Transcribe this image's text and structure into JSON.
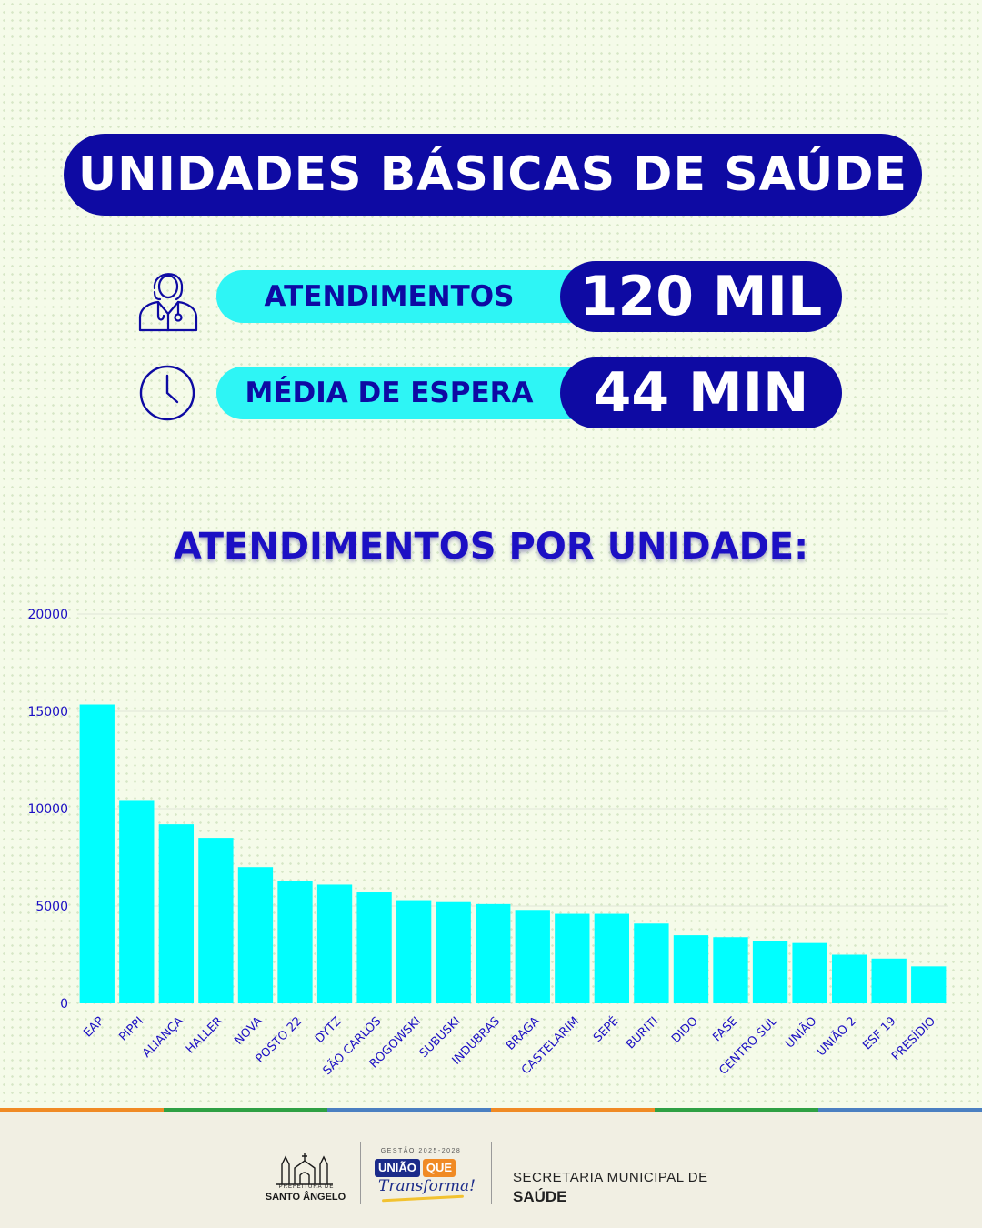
{
  "header": {
    "title": "UNIDADES BÁSICAS DE SAÚDE"
  },
  "stats": [
    {
      "label": "ATENDIMENTOS",
      "value": "120 MIL",
      "icon": "doctor-icon"
    },
    {
      "label": "MÉDIA DE ESPERA",
      "value": "44 MIN",
      "icon": "clock-icon"
    }
  ],
  "colors": {
    "navy": "#0e0aa3",
    "cyan": "#2ef5f5",
    "bar": "#00ffff",
    "axis_text": "#1c0fc4"
  },
  "chart_data": {
    "type": "bar",
    "title": "ATENDIMENTOS POR UNIDADE:",
    "categories": [
      "EAP",
      "PIPPI",
      "ALIANÇA",
      "HALLER",
      "NOVA",
      "POSTO 22",
      "DYTZ",
      "SÃO CARLOS",
      "ROGOWSKI",
      "SUBUSKI",
      "INDUBRAS",
      "BRAGA",
      "CASTELARIM",
      "SEPÉ",
      "BURITI",
      "DIDO",
      "FASE",
      "CENTRO SUL",
      "UNIÃO",
      "UNIÃO 2",
      "ESF 19",
      "PRESÍDIO"
    ],
    "values": [
      15350,
      10400,
      9200,
      8500,
      7000,
      6300,
      6100,
      5700,
      5300,
      5200,
      5100,
      4800,
      4600,
      4600,
      4100,
      3500,
      3400,
      3200,
      3100,
      2500,
      2300,
      1900
    ],
    "yticks": [
      0,
      5000,
      10000,
      15000,
      20000
    ],
    "ylim": [
      0,
      20000
    ],
    "grid": true
  },
  "footer": {
    "stripe_colors": [
      "#f08a24",
      "#2ea043",
      "#4a7fc1",
      "#f08a24",
      "#2ea043",
      "#4a7fc1"
    ],
    "prefeitura_small": "PREFEITURA DE",
    "prefeitura_name": "SANTO ÂNGELO",
    "gestao": "GESTÃO 2025-2028",
    "uniao": "UNIÃO",
    "que": "QUE",
    "transforma": "Transforma!",
    "secretaria_line1": "SECRETARIA MUNICIPAL DE",
    "secretaria_line2": "SAÚDE"
  }
}
